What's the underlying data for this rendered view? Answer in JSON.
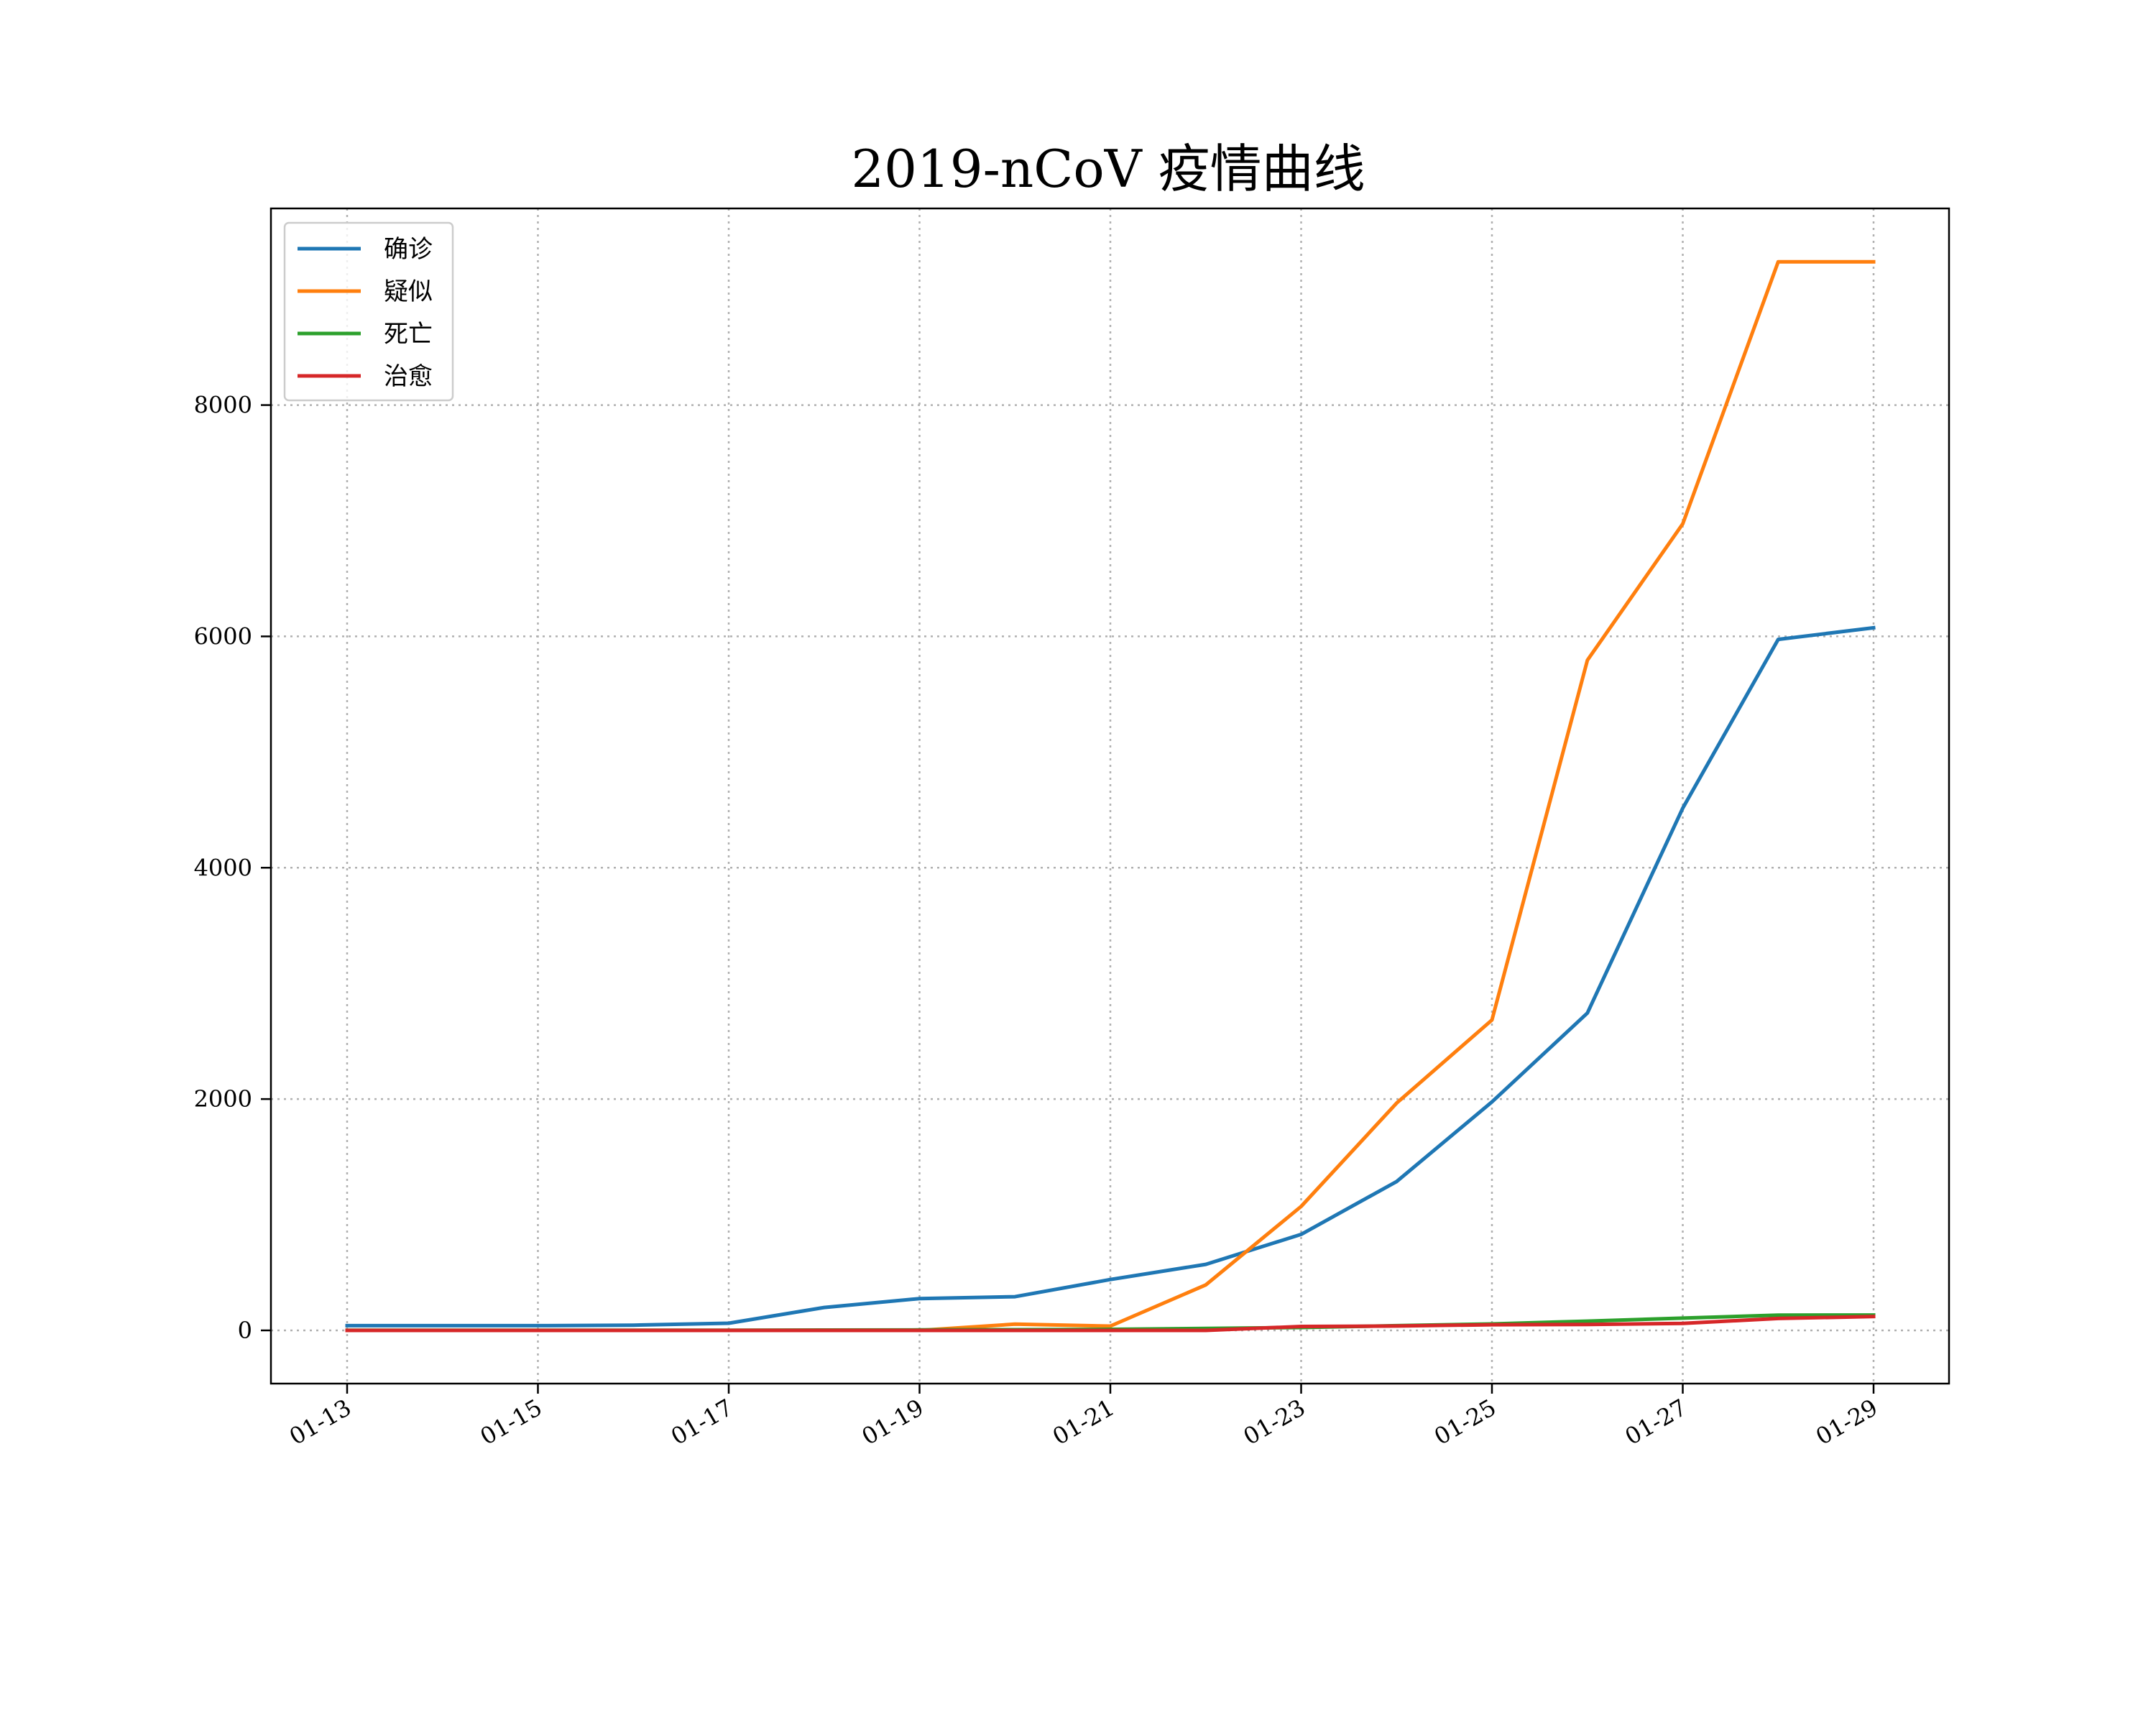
{
  "chart_data": {
    "type": "line",
    "title": "2019-nCoV 疫情曲线",
    "xlabel": "",
    "ylabel": "",
    "x": [
      "01-13",
      "01-14",
      "01-15",
      "01-16",
      "01-17",
      "01-18",
      "01-19",
      "01-20",
      "01-21",
      "01-22",
      "01-23",
      "01-24",
      "01-25",
      "01-26",
      "01-27",
      "01-28",
      "01-29"
    ],
    "x_tick_labels": [
      "01-13",
      "01-15",
      "01-17",
      "01-19",
      "01-21",
      "01-23",
      "01-25",
      "01-27",
      "01-29"
    ],
    "y_ticks": [
      0,
      2000,
      4000,
      6000,
      8000
    ],
    "ylim": [
      -460,
      9700
    ],
    "grid": true,
    "grid_style": "dotted",
    "legend_position": "upper-left",
    "series": [
      {
        "name": "确诊",
        "color": "#1f77b4",
        "values": [
          41,
          41,
          41,
          45,
          62,
          198,
          275,
          291,
          440,
          571,
          830,
          1287,
          1975,
          2744,
          4515,
          5974,
          6075
        ]
      },
      {
        "name": "疑似",
        "color": "#ff7f0e",
        "values": [
          0,
          0,
          0,
          0,
          0,
          0,
          0,
          54,
          37,
          393,
          1072,
          1965,
          2684,
          5794,
          6973,
          9239,
          9239
        ]
      },
      {
        "name": "死亡",
        "color": "#2ca02c",
        "values": [
          1,
          1,
          2,
          2,
          2,
          3,
          4,
          6,
          9,
          17,
          25,
          41,
          56,
          80,
          106,
          132,
          133
        ]
      },
      {
        "name": "治愈",
        "color": "#d62728",
        "values": [
          0,
          0,
          0,
          0,
          0,
          0,
          0,
          0,
          0,
          0,
          34,
          38,
          49,
          51,
          60,
          103,
          120
        ]
      }
    ]
  }
}
